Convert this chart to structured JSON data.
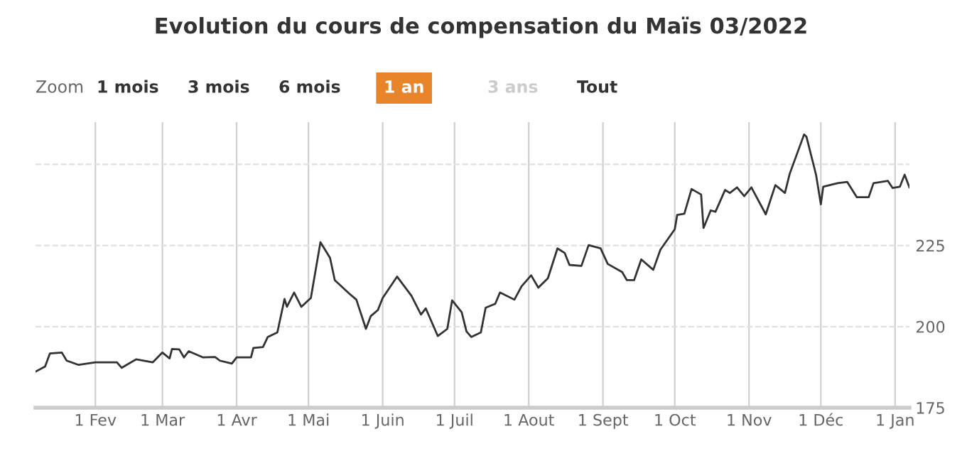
{
  "chart_data": {
    "type": "line",
    "title": "Evolution du cours de compensation du Maïs 03/2022",
    "annotations": [
      "Zoom",
      "1 mois",
      "3 mois",
      "6 mois",
      "1 an",
      "3 ans",
      "Tout"
    ],
    "x": [
      "2021-01-07",
      "2021-01-11",
      "2021-01-13",
      "2021-01-18",
      "2021-01-20",
      "2021-01-25",
      "2021-02-01",
      "2021-02-10",
      "2021-02-12",
      "2021-02-18",
      "2021-02-25",
      "2021-03-01",
      "2021-03-04",
      "2021-03-05",
      "2021-03-08",
      "2021-03-10",
      "2021-03-12",
      "2021-03-18",
      "2021-03-23",
      "2021-03-25",
      "2021-03-30",
      "2021-04-01",
      "2021-04-07",
      "2021-04-08",
      "2021-04-12",
      "2021-04-14",
      "2021-04-18",
      "2021-04-21",
      "2021-04-22",
      "2021-04-25",
      "2021-04-28",
      "2021-05-02",
      "2021-05-06",
      "2021-05-10",
      "2021-05-12",
      "2021-05-18",
      "2021-05-21",
      "2021-05-25",
      "2021-05-27",
      "2021-05-30",
      "2021-06-01",
      "2021-06-07",
      "2021-06-13",
      "2021-06-17",
      "2021-06-19",
      "2021-06-24",
      "2021-06-28",
      "2021-06-30",
      "2021-07-04",
      "2021-07-06",
      "2021-07-08",
      "2021-07-12",
      "2021-07-14",
      "2021-07-18",
      "2021-07-20",
      "2021-07-26",
      "2021-07-29",
      "2021-08-02",
      "2021-08-05",
      "2021-08-09",
      "2021-08-13",
      "2021-08-16",
      "2021-08-18",
      "2021-08-23",
      "2021-08-26",
      "2021-08-31",
      "2021-09-03",
      "2021-09-09",
      "2021-09-11",
      "2021-09-14",
      "2021-09-17",
      "2021-09-22",
      "2021-09-25",
      "2021-10-01",
      "2021-10-02",
      "2021-10-05",
      "2021-10-08",
      "2021-10-12",
      "2021-10-13",
      "2021-10-16",
      "2021-10-18",
      "2021-10-22",
      "2021-10-24",
      "2021-10-27",
      "2021-10-30",
      "2021-11-02",
      "2021-11-08",
      "2021-11-12",
      "2021-11-16",
      "2021-11-18",
      "2021-11-24",
      "2021-11-25",
      "2021-11-29",
      "2021-12-01",
      "2021-12-02",
      "2021-12-08",
      "2021-12-12",
      "2021-12-16",
      "2021-12-21",
      "2021-12-23",
      "2021-12-29",
      "2021-12-31",
      "2022-01-03",
      "2022-01-05",
      "2022-01-07"
    ],
    "series": [
      {
        "color": "#333333",
        "values": [
          186.1,
          187.7,
          191.7,
          192.0,
          189.5,
          188.2,
          189.0,
          189.0,
          187.3,
          189.9,
          189.0,
          192.0,
          190.2,
          193.1,
          193.0,
          190.5,
          192.4,
          190.5,
          190.6,
          189.5,
          188.6,
          190.5,
          190.5,
          193.4,
          193.7,
          196.8,
          198.2,
          208.5,
          206.1,
          210.5,
          206.1,
          208.8,
          226.0,
          221.2,
          214.3,
          210.2,
          208.3,
          199.3,
          203.2,
          205.1,
          208.8,
          215.4,
          209.5,
          203.7,
          205.6,
          197.1,
          199.3,
          208.1,
          204.4,
          198.5,
          196.8,
          198.2,
          205.8,
          207.0,
          210.5,
          208.3,
          212.4,
          215.8,
          212.0,
          214.9,
          224.1,
          222.7,
          219.0,
          218.7,
          225.1,
          224.1,
          219.3,
          216.8,
          214.3,
          214.3,
          220.7,
          217.5,
          223.7,
          230.0,
          234.4,
          234.8,
          242.4,
          240.7,
          230.4,
          235.8,
          235.4,
          242.1,
          241.2,
          242.9,
          240.2,
          242.9,
          234.6,
          243.6,
          241.2,
          247.1,
          259.2,
          258.5,
          246.8,
          237.7,
          243.1,
          244.2,
          244.6,
          239.9,
          239.9,
          244.2,
          244.9,
          242.7,
          243.1,
          246.8,
          242.9
        ]
      }
    ],
    "xlim": [
      "2021-01-07",
      "2022-01-07"
    ],
    "xticks": [
      {
        "value": "2021-02-01",
        "label": "1 Fev"
      },
      {
        "value": "2021-03-01",
        "label": "1 Mar"
      },
      {
        "value": "2021-04-01",
        "label": "1 Avr"
      },
      {
        "value": "2021-05-01",
        "label": "1 Mai"
      },
      {
        "value": "2021-06-01",
        "label": "1 Juin"
      },
      {
        "value": "2021-07-01",
        "label": "1 Juil"
      },
      {
        "value": "2021-08-01",
        "label": "1 Aout"
      },
      {
        "value": "2021-09-01",
        "label": "1 Sept"
      },
      {
        "value": "2021-10-01",
        "label": "1 Oct"
      },
      {
        "value": "2021-11-01",
        "label": "1 Nov"
      },
      {
        "value": "2021-12-01",
        "label": "1 Déc"
      },
      {
        "value": "2022-01-01",
        "label": "1 Jan"
      }
    ],
    "ylim": [
      175,
      263
    ],
    "yticks": [
      175,
      200,
      225,
      {
        "value": 250,
        "label": null
      }
    ],
    "grid": true,
    "marker": "none",
    "line_style": "solid"
  }
}
